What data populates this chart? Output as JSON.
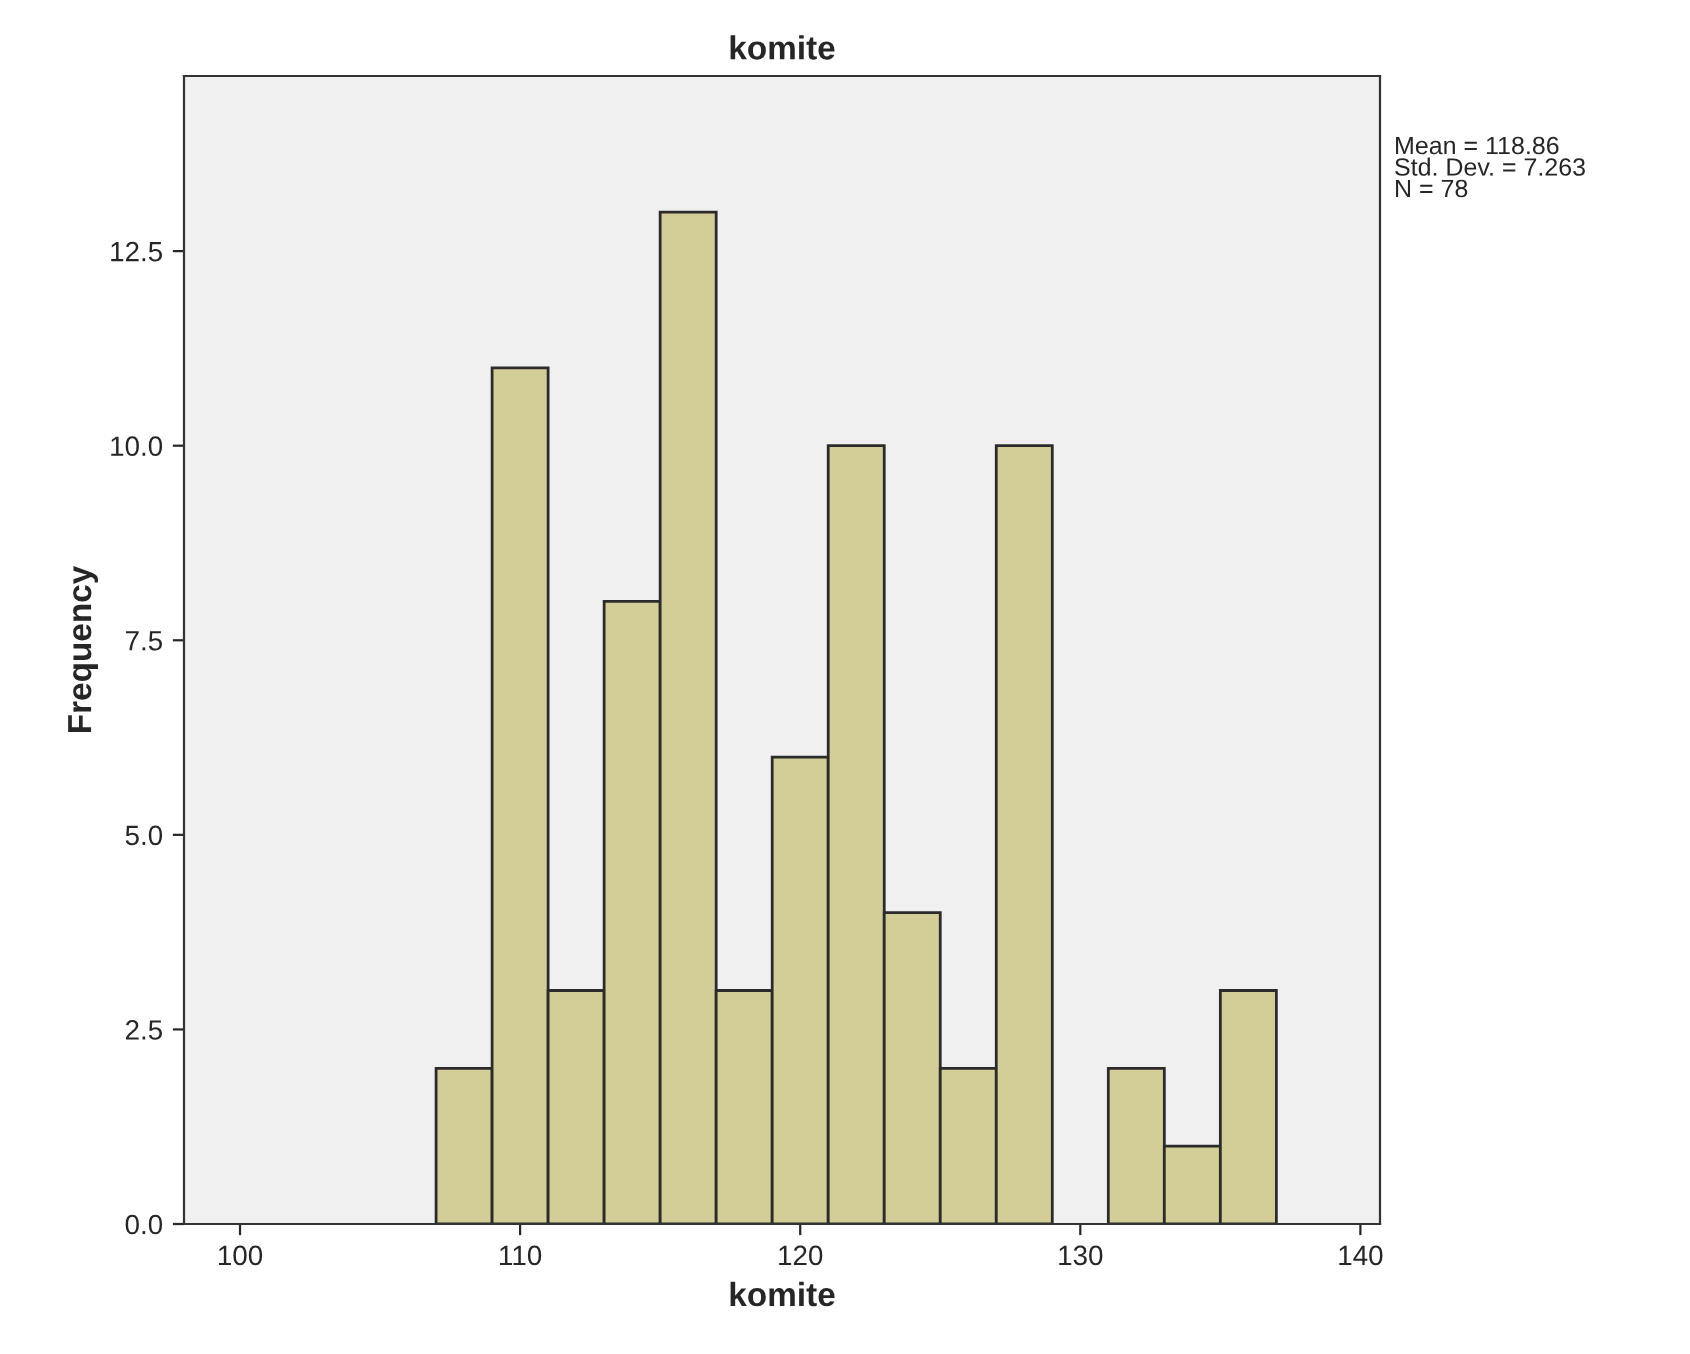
{
  "chart_data": {
    "type": "histogram",
    "title": "komite",
    "xlabel": "komite",
    "ylabel": "Frequency",
    "bins": [
      107,
      109,
      111,
      113,
      115,
      117,
      119,
      121,
      123,
      125,
      127,
      129,
      131,
      133,
      135,
      137
    ],
    "values": [
      2,
      11,
      3,
      8,
      13,
      3,
      6,
      10,
      4,
      2,
      10,
      0,
      2,
      1,
      3
    ],
    "color": "#d3ce97",
    "xlim": [
      98,
      140.7
    ],
    "xticks": [
      100,
      110,
      120,
      130,
      140
    ],
    "ylim": [
      0,
      14.75
    ],
    "yticks": [
      {
        "value": 0,
        "label": "0.0"
      },
      {
        "value": 2.5,
        "label": "2.5"
      },
      {
        "value": 5,
        "label": "5.0"
      },
      {
        "value": 7.5,
        "label": "7.5"
      },
      {
        "value": 10,
        "label": "10.0"
      },
      {
        "value": 12.5,
        "label": "12.5"
      }
    ],
    "grid": false,
    "annotations": [
      "Mean = 118.86\nStd. Dev. = 7.263\nN = 78"
    ]
  }
}
